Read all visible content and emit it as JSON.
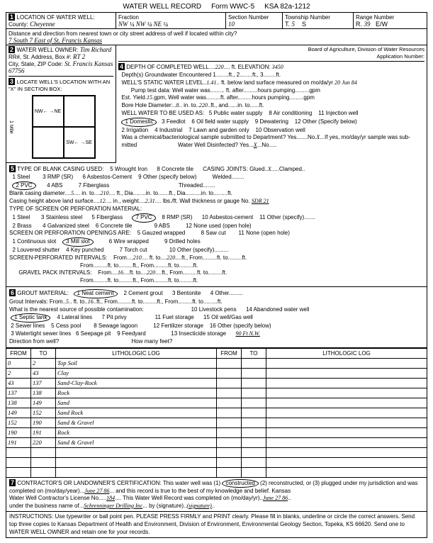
{
  "form_header": {
    "title": "WATER WELL RECORD",
    "form_no": "Form WWC-5",
    "ksa": "KSA 82a-1212"
  },
  "section1": {
    "label": "LOCATION OF WATER WELL:",
    "county_label": "County:",
    "county": "Cheyenne",
    "fraction_label": "Fraction",
    "fraction": "NW ¼ NW ¼ NE ¼",
    "section_label": "Section Number",
    "section": "10",
    "township_label": "Township Number",
    "township_t": "T.",
    "township": "5",
    "township_s": "S",
    "range_label": "Range Number",
    "range_r": "R.",
    "range": "39",
    "range_ew": "E/W",
    "distance_label": "Distance and direction from nearest town or city street address of well if located within city?",
    "distance": "7 South   7 East of St. Francis Kansas"
  },
  "section2": {
    "label": "WATER WELL OWNER:",
    "owner": "Tim Richard",
    "rr_label": "RR#, St. Address, Box #:",
    "rr": "RT 2",
    "city_label": "City, State, ZIP Code:",
    "city": "St. Francis Kansas 67756",
    "board": "Board of Agriculture, Division of Water Resources",
    "app_label": "Application Number:"
  },
  "section3": {
    "label": "LOCATE WELL'S LOCATION WITH AN \"X\" IN SECTION BOX:",
    "nw": "NW",
    "ne": "NE",
    "sw": "SW",
    "se": "SE",
    "mile_label": "1 Mile",
    "dir_n": "N",
    "dir_s": "S",
    "dir_e": "E",
    "dir_w": "W"
  },
  "section4": {
    "label": "DEPTH OF COMPLETED WELL",
    "depth": "220",
    "elev_label": "ft. ELEVATION:",
    "elev": "3450",
    "gw_label": "Depth(s) Groundwater Encountered",
    "gw1": "1",
    "gw2": "2",
    "gw3": "3",
    "static_label": "WELL'S STATIC WATER LEVEL",
    "static": "1.41",
    "static_unit": "ft. below land surface measured on mo/da/yr",
    "static_date": "20 Jun 84",
    "pump_label": "Pump test data: Well water was",
    "pump_after": "ft. after",
    "pump_hours": "hours pumping",
    "pump_gpm": "gpm",
    "est_yield_label": "Est. Yield",
    "est_yield": "15",
    "est_yield_unit": "gpm",
    "well_water2": "Well water was",
    "bore_label": "Bore Hole Diameter:",
    "bore": "8",
    "bore_in": "in. to",
    "bore_to": "220",
    "bore_ft": "ft., and",
    "use_label": "WELL WATER TO BE USED AS:",
    "u1": "Domestic",
    "u2": "2 Irrigation",
    "u3": "3 Feedlot",
    "u4": "4 Industrial",
    "u5": "5 Public water supply",
    "u6": "6 Oil field water supply",
    "u7": "7 Lawn and garden only",
    "u8": "8 Air conditioning",
    "u9": "9 Dewatering",
    "u10": "10 Observation well",
    "u11": "11 Injection well",
    "u12": "12 Other (Specify below)",
    "chem_label": "Was a chemical/bacteriological sample submitted to Department? Yes.......No.",
    "chem_no": "X",
    "chem_rest": "...If yes, mo/day/yr sample was sub-",
    "mitted": "mitted",
    "disinfect_label": "Water Well Disinfected?  Yes",
    "disinfect_x": "X",
    "disinfect_no": "No"
  },
  "section5": {
    "label": "TYPE OF BLANK CASING USED:",
    "c1": "1 Steel",
    "c2": "PVC",
    "c3": "3 RMP (SR)",
    "c4": "4 ABS",
    "c5": "5 Wrought Iron",
    "c6": "6 Asbestos-Cement",
    "c7": "7 Fiberglass",
    "c8": "8 Concrete tile",
    "c9": "9 Other (specify below)",
    "joints_label": "CASING JOINTS: Glued",
    "joints_x": "X",
    "joints_rest": "...Clamped",
    "joints_welded": "Welded",
    "joints_thread": "Threaded",
    "bcd_label": "Blank casing diameter",
    "bcd": "5",
    "bcd_to": "in. to",
    "bcd_ft": "210",
    "bcd_dia": "ft., Dia.",
    "height_label": "Casing height above land surface",
    "height": "12",
    "weight_label": "in., weight",
    "weight": "2.31",
    "weight_unit": "lbs./ft.  Wall thickness or gauge No.",
    "gauge": "SDR 21",
    "screen_label": "TYPE OF SCREEN OR PERFORATION MATERIAL:",
    "s1": "1 Steel",
    "s2": "2 Brass",
    "s3": "3 Stainless steel",
    "s4": "4 Galvanized steel",
    "s5": "5 Fiberglass",
    "s6": "6 Concrete tile",
    "s7": "PVC",
    "s8": "8 RMP (SR)",
    "s9": "9 ABS",
    "s10": "10 Asbestos-cement",
    "s11": "11 Other (specify)",
    "s12": "12 None used (open hole)",
    "open_label": "SCREEN OR PERFORATION OPENINGS ARE:",
    "o1": "1 Continuous slot",
    "o2": "2 Louvered shutter",
    "o3": "Mill slot",
    "o4": "4 Key punched",
    "o5": "5 Gauzed wrapped",
    "o6": "6 Wire wrapped",
    "o7": "7 Torch cut",
    "o8": "8 Saw cut",
    "o9": "9 Drilled holes",
    "o10": "10 Other (specify)",
    "o11": "11 None (open hole)",
    "spi_label": "SCREEN-PERFORATED INTERVALS:",
    "spi_from": "From",
    "spi_f": "210",
    "spi_to": "ft. to",
    "spi_t": "220",
    "gpi_label": "GRAVEL PACK INTERVALS:",
    "gpi_f": "16",
    "gpi_t": "220"
  },
  "section6": {
    "label": "GROUT MATERIAL:",
    "g1": "Neat cement",
    "g2": "2 Cement grout",
    "g3": "3 Bentonite",
    "g4": "4 Other",
    "gi_label": "Grout Intervals:   From",
    "gi_f": "5",
    "gi_to": "ft. to",
    "gi_t": "16",
    "contam_label": "What is the nearest source of possible contamination:",
    "p1": "Septic tank",
    "p2": "2 Sewer lines",
    "p3": "3 Watertight sewer lines",
    "p4": "4 Lateral lines",
    "p5": "5 Cess pool",
    "p6": "6 Seepage pit",
    "p7": "7 Pit privy",
    "p8": "8 Sewage lagoon",
    "p9": "9 Feedyard",
    "p10": "10 Livestock pens",
    "p11": "11 Fuel storage",
    "p12": "12 Fertilizer storage",
    "p13": "13 Insecticide storage",
    "p14": "14 Abandoned water well",
    "p15": "15 Oil well/Gas well",
    "p16": "16 Other (specify below)",
    "dist": "90 Ft  N.W.",
    "dir_label": "Direction from well?",
    "feet_label": "How many feet?"
  },
  "log": {
    "h_from": "FROM",
    "h_to": "TO",
    "h_lith": "LITHOLOGIC LOG",
    "rows": [
      {
        "f": "0",
        "t": "2",
        "l": "Top Soil"
      },
      {
        "f": "2",
        "t": "43",
        "l": "Clay"
      },
      {
        "f": "43",
        "t": "137",
        "l": "Sand-Clay-Rock"
      },
      {
        "f": "137",
        "t": "138",
        "l": "Rock"
      },
      {
        "f": "138",
        "t": "149",
        "l": "Sand"
      },
      {
        "f": "149",
        "t": "152",
        "l": "Sand Rock"
      },
      {
        "f": "152",
        "t": "190",
        "l": "Sand & Gravel"
      },
      {
        "f": "190",
        "t": "191",
        "l": "Rock"
      },
      {
        "f": "191",
        "t": "220",
        "l": "Sand & Gravel"
      }
    ]
  },
  "section7": {
    "label": "CONTRACTOR'S OR LANDOWNER'S CERTIFICATION: This water well was (1)",
    "constructed": "constructed",
    "rest1": "(2) reconstructed, or (3) plugged under my jurisdiction and was",
    "completed": "completed on (mo/day/year)",
    "date": "June 27  86",
    "rest2": "and this record is true to the best of my knowledge and belief. Kansas",
    "lic_label": "Water Well Contractor's License No.",
    "lic": "184",
    "rest3": "This Water Well Record was completed on (mo/day/yr)",
    "date2": "June 27  86",
    "bus_label": "under the business name of",
    "bus": "Schrenninger Drilling Inc",
    "sig_label": "by (signature)",
    "sig": "(signature)"
  },
  "instructions": "INSTRUCTIONS: Use typewriter or ball point pen. PLEASE PRESS FIRMLY and PRINT clearly. Please fill in blanks, underline or circle the correct answers. Send top three copies to Kansas Department of Health and Environment, Division of Environment, Environmental Geology Section, Topeka, KS 66620. Send one to WATER WELL OWNER and retain one for your records."
}
